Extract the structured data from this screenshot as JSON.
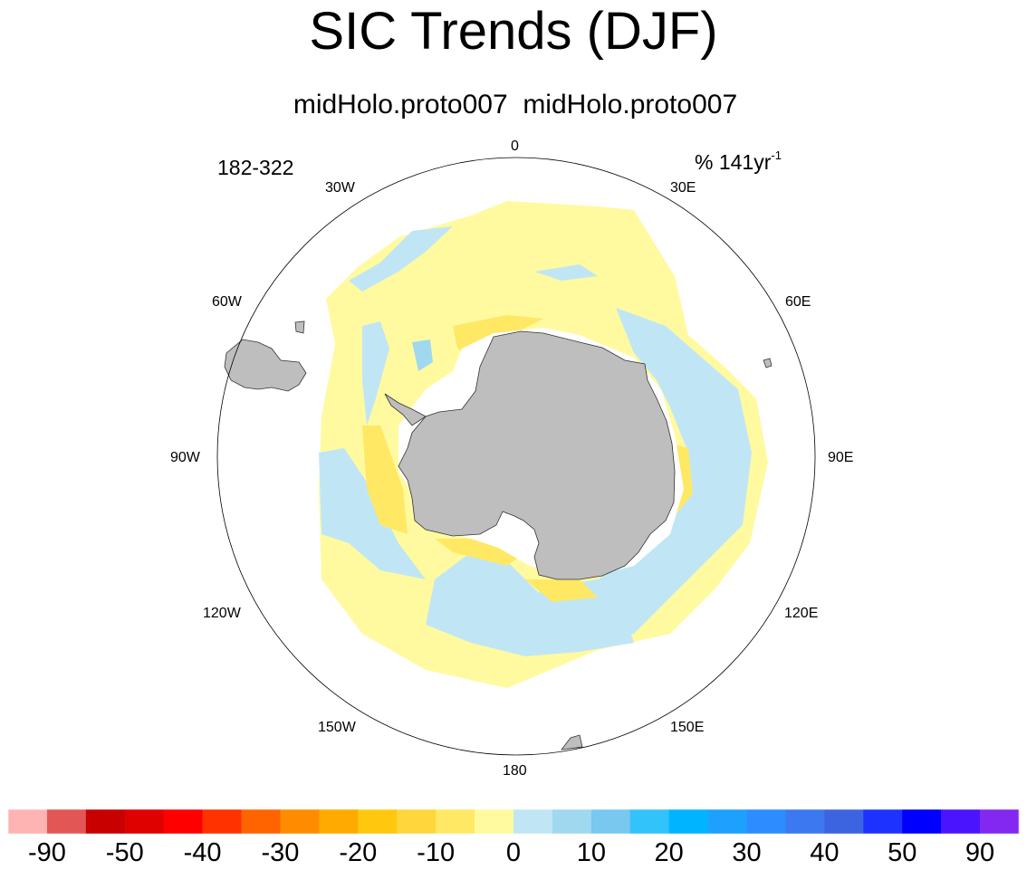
{
  "title": "SIC Trends (DJF)",
  "subtitle": "midHolo.proto007  midHolo.proto007",
  "left_label": "182-322",
  "right_label_main": "% 141yr",
  "right_label_sup": "-1",
  "longitude_labels": {
    "n0": "0",
    "w30": "30W",
    "e30": "30E",
    "w60": "60W",
    "e60": "60E",
    "w90": "90W",
    "e90": "90E",
    "w120": "120W",
    "e120": "120E",
    "w150": "150W",
    "e150": "150E",
    "s180": "180"
  },
  "colors": {
    "land": "#bebebe",
    "c_m90": "#ffb4b4",
    "c_m70": "#e35656",
    "c_m50": "#c80000",
    "c_m45": "#df0000",
    "c_m40": "#ff0000",
    "c_m35": "#ff3200",
    "c_m30": "#ff6400",
    "c_m25": "#ff8c00",
    "c_m20": "#ffaa00",
    "c_m15": "#ffc80f",
    "c_m10": "#ffd73c",
    "c_m5": "#ffe864",
    "c_0neg": "#fffaa0",
    "c_0pos": "#c0e6f6",
    "c_5": "#a0d8f0",
    "c_10": "#78c8f0",
    "c_15": "#32c3fa",
    "c_20": "#00b4ff",
    "c_25": "#1ea0ff",
    "c_30": "#2d8cff",
    "c_35": "#3c78f0",
    "c_40": "#3c64e1",
    "c_45": "#1e32ff",
    "c_50": "#0000ff",
    "c_70": "#4b14ff",
    "c_90": "#8228f0"
  },
  "colorbar": {
    "labels": [
      "-90",
      "-50",
      "-40",
      "-30",
      "-20",
      "-10",
      "0",
      "10",
      "20",
      "30",
      "40",
      "50",
      "90"
    ]
  }
}
